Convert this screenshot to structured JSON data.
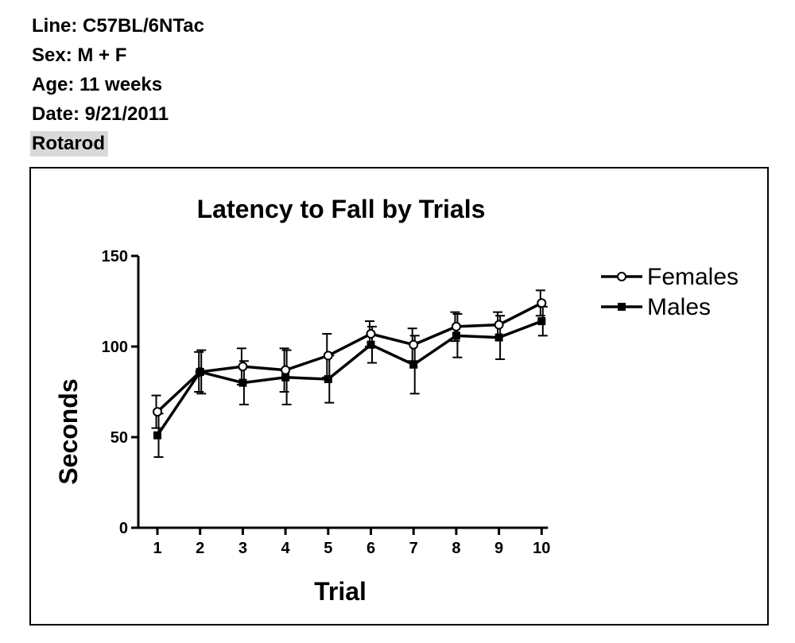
{
  "meta": {
    "line": "Line: C57BL/6NTac",
    "sex": "Sex: M + F",
    "age": "Age: 11 weeks",
    "date": "Date: 9/21/2011",
    "test": "Rotarod"
  },
  "chart_data": {
    "type": "line",
    "title": "Latency to Fall by Trials",
    "xlabel": "Trial",
    "ylabel": "Seconds",
    "x": [
      1,
      2,
      3,
      4,
      5,
      6,
      7,
      8,
      9,
      10
    ],
    "xticks": [
      "1",
      "2",
      "3",
      "4",
      "5",
      "6",
      "7",
      "8",
      "9",
      "10"
    ],
    "ylim": [
      0,
      150
    ],
    "yticks": [
      0,
      50,
      100,
      150
    ],
    "grid": false,
    "legend": "top-right",
    "series": [
      {
        "name": "Females",
        "marker": "open-circle",
        "values": [
          64,
          86,
          89,
          87,
          95,
          107,
          101,
          111,
          112,
          124
        ],
        "error": [
          9,
          11,
          10,
          12,
          12,
          7,
          9,
          8,
          7,
          7
        ]
      },
      {
        "name": "Males",
        "marker": "filled-square",
        "values": [
          51,
          86,
          80,
          83,
          82,
          101,
          90,
          106,
          105,
          114
        ],
        "error": [
          12,
          12,
          12,
          15,
          13,
          10,
          16,
          12,
          12,
          8
        ]
      }
    ]
  }
}
